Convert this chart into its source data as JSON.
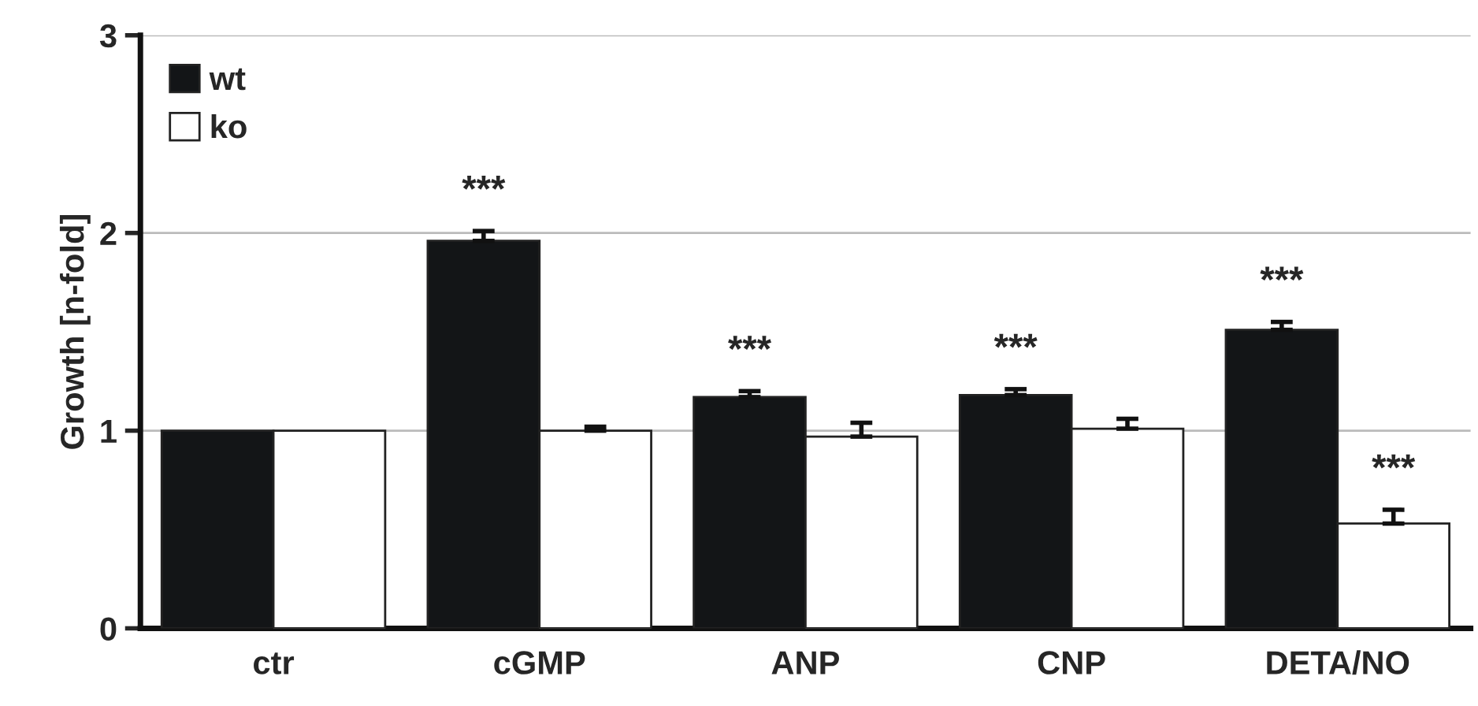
{
  "chart_data": {
    "type": "bar",
    "ylabel": "Growth [n-fold]",
    "categories": [
      "ctr",
      "cGMP",
      "ANP",
      "CNP",
      "DETA/NO"
    ],
    "series": [
      {
        "name": "wt",
        "color": "#131517",
        "values": [
          1.0,
          1.96,
          1.17,
          1.18,
          1.51
        ],
        "errors": [
          null,
          [
            1.96,
            2.01
          ],
          [
            1.17,
            1.2
          ],
          [
            1.18,
            1.21
          ],
          [
            1.51,
            1.55
          ]
        ],
        "value_labels": [
          null,
          "***",
          "***",
          "***",
          "***"
        ]
      },
      {
        "name": "ko",
        "color": "#ffffff",
        "values": [
          1.0,
          1.0,
          0.97,
          1.01,
          0.53
        ],
        "errors": [
          null,
          [
            1.0,
            1.02
          ],
          [
            0.97,
            1.04
          ],
          [
            1.01,
            1.06
          ],
          [
            0.53,
            0.6
          ]
        ],
        "value_labels": [
          null,
          null,
          null,
          null,
          "***"
        ]
      }
    ],
    "ylim": [
      0,
      3
    ],
    "yticks": [
      0,
      1,
      2,
      3
    ],
    "grid": "y",
    "legend": "top left"
  }
}
